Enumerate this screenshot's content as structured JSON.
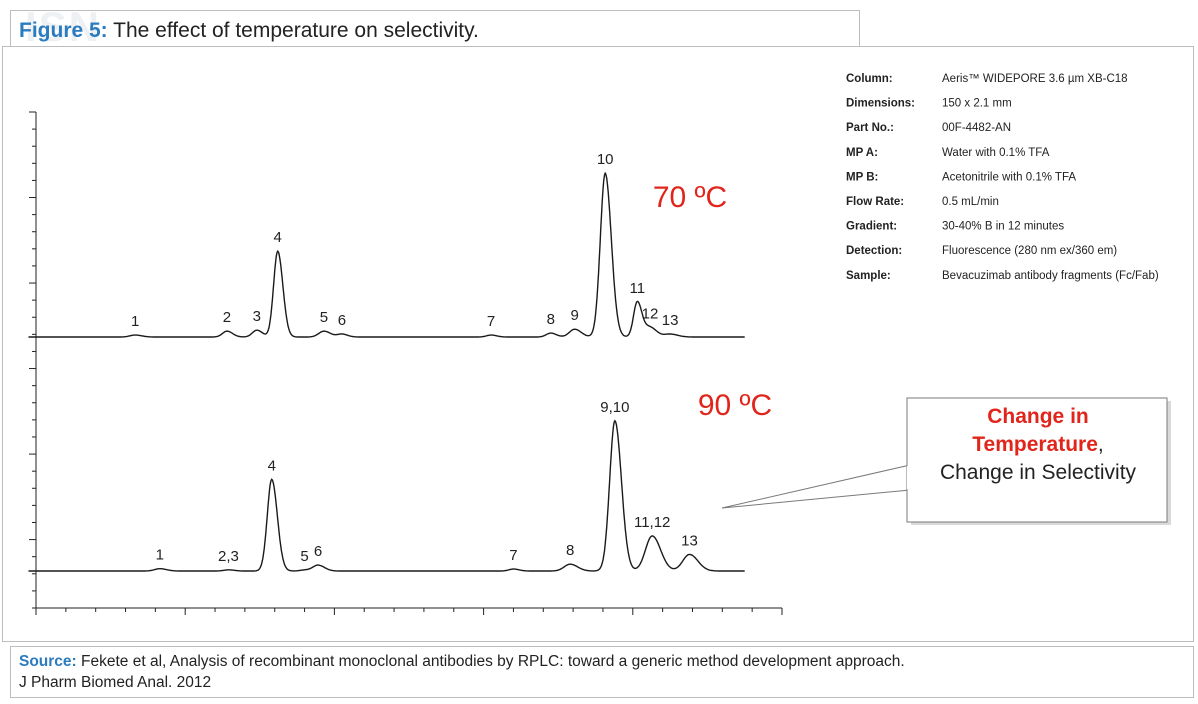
{
  "figure": {
    "label": "Figure 5:",
    "title": "The effect of temperature on selectivity.",
    "watermark": "ISN"
  },
  "conditions": [
    {
      "key": "Column:",
      "value": "Aeris™ WIDEPORE 3.6 µm XB-C18"
    },
    {
      "key": "Dimensions:",
      "value": "150 x 2.1 mm"
    },
    {
      "key": "Part No.:",
      "value": "00F-4482-AN"
    },
    {
      "key": "MP A:",
      "value": "Water with 0.1% TFA"
    },
    {
      "key": "MP B:",
      "value": "Acetonitrile with 0.1% TFA"
    },
    {
      "key": "Flow Rate:",
      "value": "0.5 mL/min"
    },
    {
      "key": "Gradient:",
      "value": "30-40% B in 12 minutes"
    },
    {
      "key": "Detection:",
      "value": "Fluorescence (280 nm ex/360 em)"
    },
    {
      "key": "Sample:",
      "value": "Bevacuzimab antibody fragments (Fc/Fab)"
    }
  ],
  "callout": {
    "line1": "Change in",
    "line2": "Temperature",
    "comma": ",",
    "line3": "Change in Selectivity",
    "accent": "#e1251b"
  },
  "source": {
    "label": "Source:",
    "text": "Fekete et al, Analysis of recombinant monoclonal antibodies by RPLC: toward a generic method development approach.",
    "text2": "J Pharm Biomed Anal. 2012"
  },
  "chart_data": {
    "type": "line",
    "title": "",
    "xlabel": "",
    "ylabel": "",
    "xlim": [
      0,
      100
    ],
    "ylim": [
      0,
      100
    ],
    "grid": false,
    "x_ticks": 26,
    "y_ticks": 30,
    "series": [
      {
        "name": "70 ºC",
        "color": "#1a1a1a",
        "label_color": "#e1251b",
        "peaks": [
          {
            "label": "1",
            "x": 13.3,
            "height": 1.0,
            "width": 0.7
          },
          {
            "label": "2",
            "x": 25.6,
            "height": 3.0,
            "width": 0.6
          },
          {
            "label": "3",
            "x": 29.6,
            "height": 3.5,
            "width": 0.6
          },
          {
            "label": "4",
            "x": 32.4,
            "height": 44.0,
            "width": 0.55
          },
          {
            "label": "5",
            "x": 38.6,
            "height": 3.0,
            "width": 0.7
          },
          {
            "label": "6",
            "x": 41.0,
            "height": 1.5,
            "width": 0.6
          },
          {
            "label": "7",
            "x": 61.0,
            "height": 1.0,
            "width": 0.6
          },
          {
            "label": "8",
            "x": 69.0,
            "height": 2.0,
            "width": 0.6
          },
          {
            "label": "9",
            "x": 72.2,
            "height": 4.0,
            "width": 0.7
          },
          {
            "label": "10",
            "x": 76.3,
            "height": 84.0,
            "width": 0.65
          },
          {
            "label": "11",
            "x": 80.6,
            "height": 18.0,
            "width": 0.5
          },
          {
            "label": "12",
            "x": 82.3,
            "height": 5.0,
            "width": 0.7
          },
          {
            "label": "13",
            "x": 85.0,
            "height": 1.5,
            "width": 0.8
          }
        ]
      },
      {
        "name": "90 ºC",
        "color": "#1a1a1a",
        "label_color": "#e1251b",
        "peaks": [
          {
            "label": "1",
            "x": 16.6,
            "height": 1.2,
            "width": 0.7
          },
          {
            "label": "2,3",
            "x": 25.8,
            "height": 0.6,
            "width": 0.6
          },
          {
            "label": "4",
            "x": 31.6,
            "height": 47.0,
            "width": 0.6
          },
          {
            "label": "5",
            "x": 36.0,
            "height": 0.5,
            "width": 0.6
          },
          {
            "label": "6",
            "x": 37.8,
            "height": 3.0,
            "width": 0.7
          },
          {
            "label": "7",
            "x": 64.0,
            "height": 1.0,
            "width": 0.6
          },
          {
            "label": "8",
            "x": 71.6,
            "height": 3.5,
            "width": 0.8
          },
          {
            "label": "9,10",
            "x": 77.6,
            "height": 77.0,
            "width": 0.7
          },
          {
            "label": "11,12",
            "x": 82.6,
            "height": 18.0,
            "width": 0.9
          },
          {
            "label": "13",
            "x": 87.6,
            "height": 8.5,
            "width": 0.9
          }
        ]
      }
    ]
  }
}
